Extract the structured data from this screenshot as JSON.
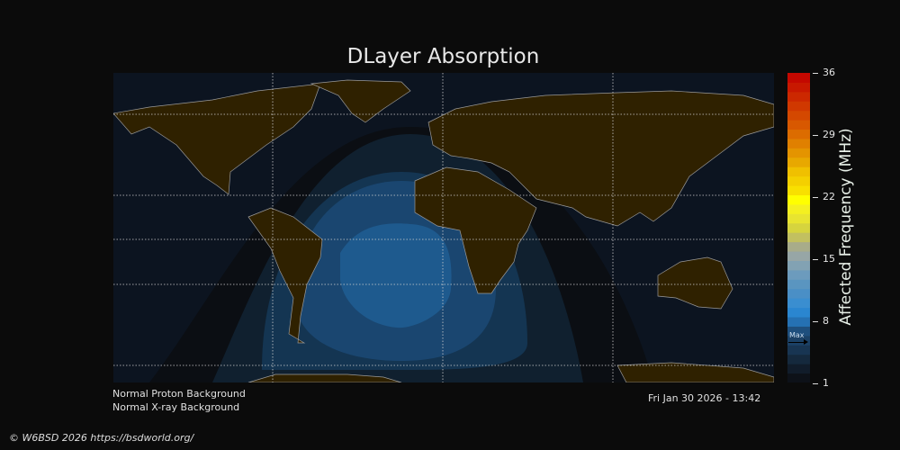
{
  "title": "DLayer Absorption",
  "colorbar": {
    "label": "Affected Frequency (MHz)",
    "ticks": [
      "36",
      "29",
      "22",
      "15",
      "8",
      "1"
    ],
    "range": [
      1,
      36
    ],
    "max_marker": "Max",
    "colors": [
      "#0d1118",
      "#111c2a",
      "#15293d",
      "#183552",
      "#1b4166",
      "#1e4f7d",
      "#2571b3",
      "#2a86d0",
      "#3a8ed0",
      "#4a8fc6",
      "#5a95c0",
      "#6c9bbd",
      "#82a2b3",
      "#97a6a6",
      "#a8ac8a",
      "#c2c060",
      "#d6d43e",
      "#e8e430",
      "#f4f020",
      "#ffff00",
      "#f8e000",
      "#f4d000",
      "#f0c000",
      "#e8a800",
      "#e49400",
      "#e08000",
      "#dc6c00",
      "#d85800",
      "#d44800",
      "#d03800",
      "#cc2800",
      "#c81800",
      "#c40800"
    ]
  },
  "map": {
    "land_color": "#2f2100",
    "ocean_color": "#0c1420",
    "absorption_levels": [
      "#0b0e13",
      "#10202f",
      "#143552",
      "#1a4670",
      "#1e5a8e"
    ]
  },
  "info": {
    "proton": "Normal Proton Background",
    "xray": "Normal X-ray Background",
    "timestamp": "Fri Jan 30 2026 - 13:42"
  },
  "copyright": "© W6BSD 2026 https://bsdworld.org/"
}
